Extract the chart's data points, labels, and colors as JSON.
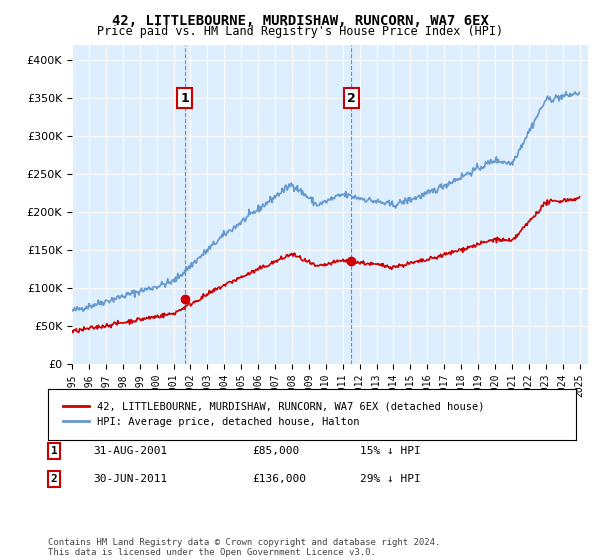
{
  "title": "42, LITTLEBOURNE, MURDISHAW, RUNCORN, WA7 6EX",
  "subtitle": "Price paid vs. HM Land Registry's House Price Index (HPI)",
  "legend_line1": "42, LITTLEBOURNE, MURDISHAW, RUNCORN, WA7 6EX (detached house)",
  "legend_line2": "HPI: Average price, detached house, Halton",
  "annotation1_label": "1",
  "annotation1_date": "31-AUG-2001",
  "annotation1_price": "£85,000",
  "annotation1_hpi": "15% ↓ HPI",
  "annotation1_year": 2001.67,
  "annotation1_price_val": 85000,
  "annotation2_label": "2",
  "annotation2_date": "30-JUN-2011",
  "annotation2_price": "£136,000",
  "annotation2_hpi": "29% ↓ HPI",
  "annotation2_year": 2011.5,
  "annotation2_price_val": 136000,
  "footer": "Contains HM Land Registry data © Crown copyright and database right 2024.\nThis data is licensed under the Open Government Licence v3.0.",
  "red_color": "#cc0000",
  "blue_color": "#6699cc",
  "background_color": "#ddeeff",
  "ylim": [
    0,
    420000
  ],
  "xlim": [
    1995,
    2025.5
  ]
}
